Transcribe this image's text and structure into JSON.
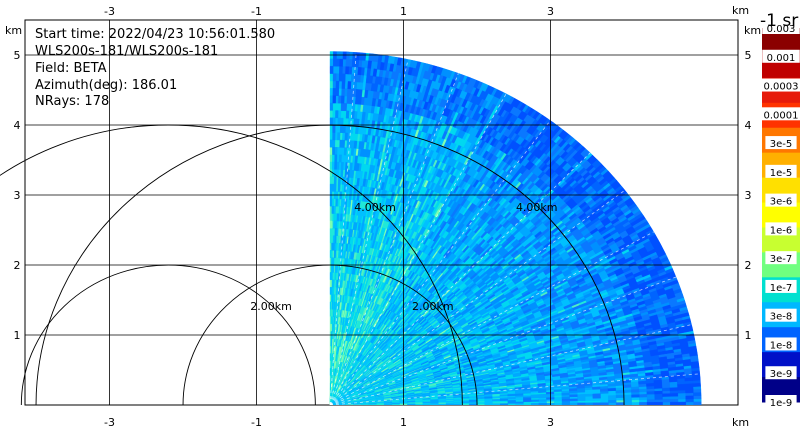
{
  "info": {
    "start_time": "Start time: 2022/04/23 10:56:01.580",
    "instrument": "WLS200s-181/WLS200s-181",
    "field": "Field: BETA",
    "azimuth": "Azimuth(deg): 186.01",
    "nrays": "NRays: 178"
  },
  "chart_data": {
    "type": "heatmap",
    "subtype": "rhi-sector",
    "x_unit": "km",
    "y_unit": "km",
    "xlim": [
      -4.15,
      5.55
    ],
    "ylim": [
      0,
      5.5
    ],
    "x_ticks": [
      -3,
      -1,
      1,
      3
    ],
    "y_ticks": [
      1,
      2,
      3,
      4,
      5
    ],
    "x_tick_labels": [
      "-3",
      "-1",
      "1",
      "3"
    ],
    "y_tick_labels": [
      "1",
      "2",
      "3",
      "4",
      "5"
    ],
    "sector_max_range_km": 5.05,
    "sector_origin_km": [
      0,
      0
    ],
    "grid": true,
    "range_rings": [
      {
        "radius_km": 2.0,
        "label": "2.00km",
        "center_km": [
          0,
          0
        ]
      },
      {
        "radius_km": 4.0,
        "label": "4.00km",
        "center_km": [
          0,
          0
        ]
      },
      {
        "radius_km": 2.0,
        "label": "2.00km",
        "center_km": [
          -2.2,
          0
        ]
      },
      {
        "radius_km": 4.0,
        "label": "4.00km",
        "center_km": [
          -2.2,
          0
        ]
      }
    ],
    "colorbar": {
      "title": "-1 sr",
      "labels": [
        "0.003",
        "0.001",
        "0.0003",
        "0.0001",
        "3e-5",
        "1e-5",
        "3e-6",
        "1e-6",
        "3e-7",
        "1e-7",
        "3e-8",
        "1e-8",
        "3e-9",
        "1e-9"
      ],
      "colors": [
        "#8b0000",
        "#c00000",
        "#e61a0a",
        "#ff3300",
        "#ff7700",
        "#ffb000",
        "#ffe000",
        "#ffff00",
        "#c8ff30",
        "#70ff80",
        "#00e0d0",
        "#00b8ff",
        "#0064ff",
        "#0010c8",
        "#000088"
      ]
    }
  }
}
